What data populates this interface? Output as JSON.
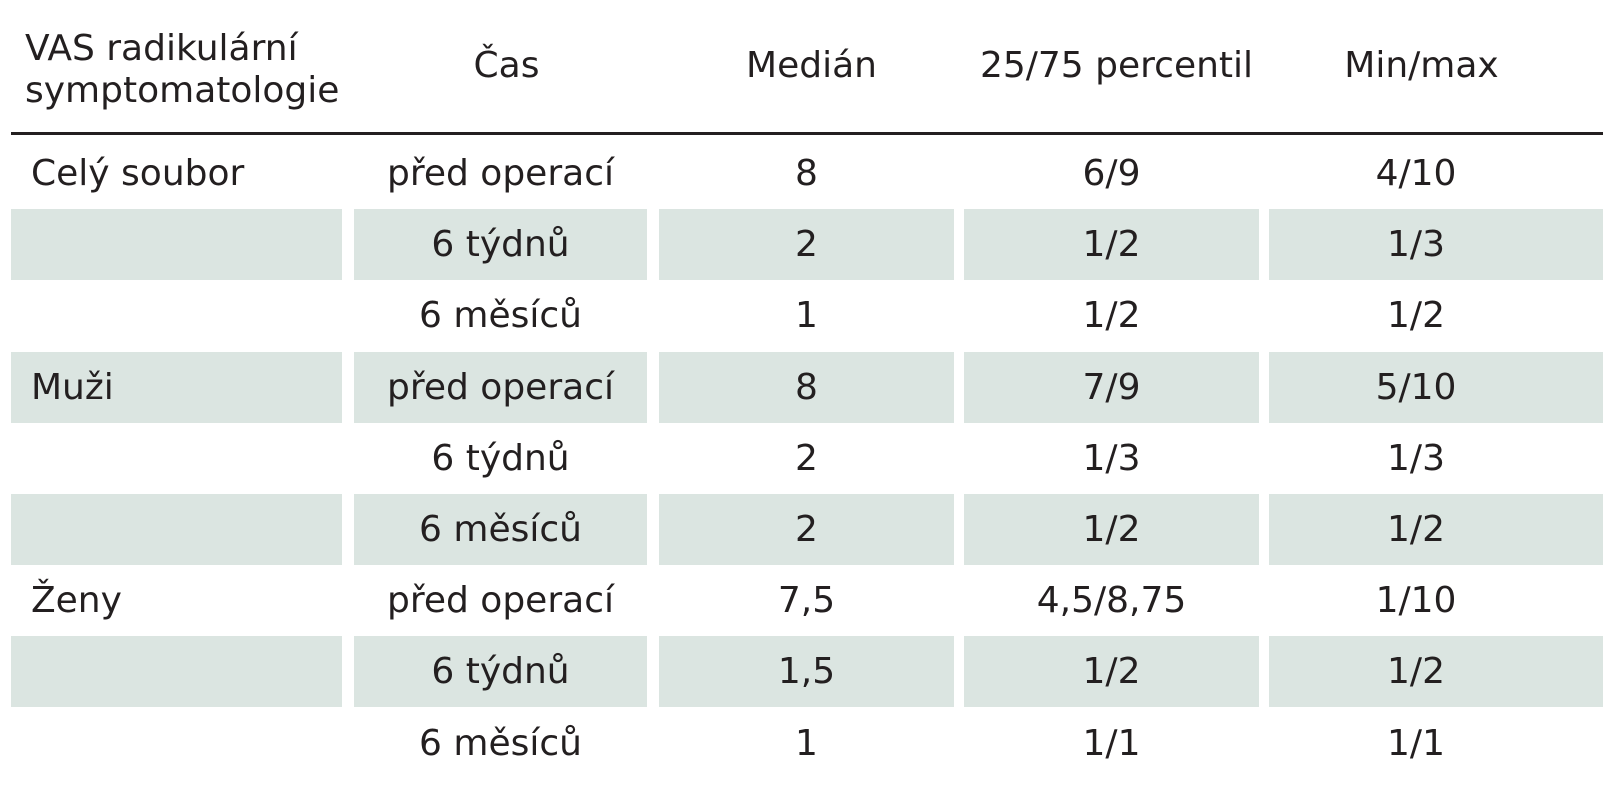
{
  "table": {
    "headers": [
      "VAS radikulární\nsymptomatologie",
      "Čas",
      "Medián",
      "25/75 percentil",
      "Min/max"
    ],
    "header_line1": "VAS radikulární",
    "header_line2": "symptomatologie",
    "rows": [
      [
        "Celý soubor",
        "před operací",
        "8",
        "6/9",
        "4/10"
      ],
      [
        "",
        "6 týdnů",
        "2",
        "1/2",
        "1/3"
      ],
      [
        "",
        "6 měsíců",
        "1",
        "1/2",
        "1/2"
      ],
      [
        "Muži",
        "před operací",
        "8",
        "7/9",
        "5/10"
      ],
      [
        "",
        "6 týdnů",
        "2",
        "1/3",
        "1/3"
      ],
      [
        "",
        "6 měsíců",
        "2",
        "1/2",
        "1/2"
      ],
      [
        "Ženy",
        "před operací",
        "7,5",
        "4,5/8,75",
        "1/10"
      ],
      [
        "",
        "6 týdnů",
        "1,5",
        "1/2",
        "1/2"
      ],
      [
        "",
        "6 měsíců",
        "1",
        "1/1",
        "1/1"
      ]
    ],
    "shaded_rows": [
      1,
      3,
      5,
      7
    ],
    "shade_color": "#dbe5e1",
    "rule_color": "#231f20"
  }
}
